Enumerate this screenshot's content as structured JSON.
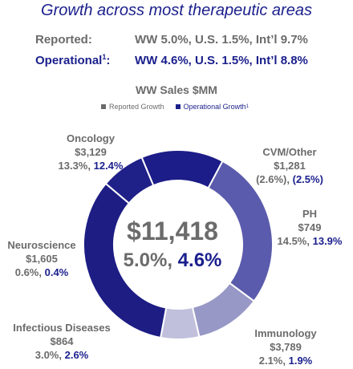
{
  "title": "Growth across most therapeutic areas",
  "reported": {
    "label": "Reported:",
    "value": "WW 5.0%, U.S. 1.5%, Int’l 9.7%"
  },
  "operational": {
    "label": "Operational",
    "sup": "1",
    "colon": ":",
    "value": "WW 4.6%, U.S. 1.5%, Int’l 8.8%"
  },
  "colors": {
    "brand_blue": "#1a1f8c",
    "text_gray": "#6b6b6b",
    "reported_swatch": "#6b6b6b",
    "operational_swatch": "#1a1f8c"
  },
  "chart_data": {
    "type": "donut",
    "title": "WW Sales $MM",
    "legend": {
      "reported": "Reported Growth",
      "operational": "Operational Growth",
      "operational_sup": "1",
      "placement": "top"
    },
    "center": {
      "total": "$11,418",
      "reported_growth": "5.0%,",
      "operational_growth": "4.6%"
    },
    "slices": [
      {
        "name": "Oncology",
        "sales": 3129,
        "sales_label": "$3,129",
        "reported": "13.3%,",
        "operational": "12.4%",
        "color": "#5b5bad"
      },
      {
        "name": "CVM/Other",
        "sales": 1281,
        "sales_label": "$1,281",
        "reported": "(2.6%),",
        "operational": "(2.5%)",
        "color": "#9898c6"
      },
      {
        "name": "PH",
        "sales": 749,
        "sales_label": "$749",
        "reported": "14.5%,",
        "operational": "13.9%",
        "color": "#c0c0dc"
      },
      {
        "name": "Immunology",
        "sales": 3789,
        "sales_label": "$3,789",
        "reported": "2.1%,",
        "operational": "1.9%",
        "color": "#1d1d84"
      },
      {
        "name": "Infectious Diseases",
        "sales": 864,
        "sales_label": "$864",
        "reported": "3.0%,",
        "operational": "2.6%",
        "color": "#1f2088"
      },
      {
        "name": "Neuroscience",
        "sales": 1605,
        "sales_label": "$1,605",
        "reported": "0.6%,",
        "operational": "0.4%",
        "color": "#1c1d88"
      }
    ]
  }
}
